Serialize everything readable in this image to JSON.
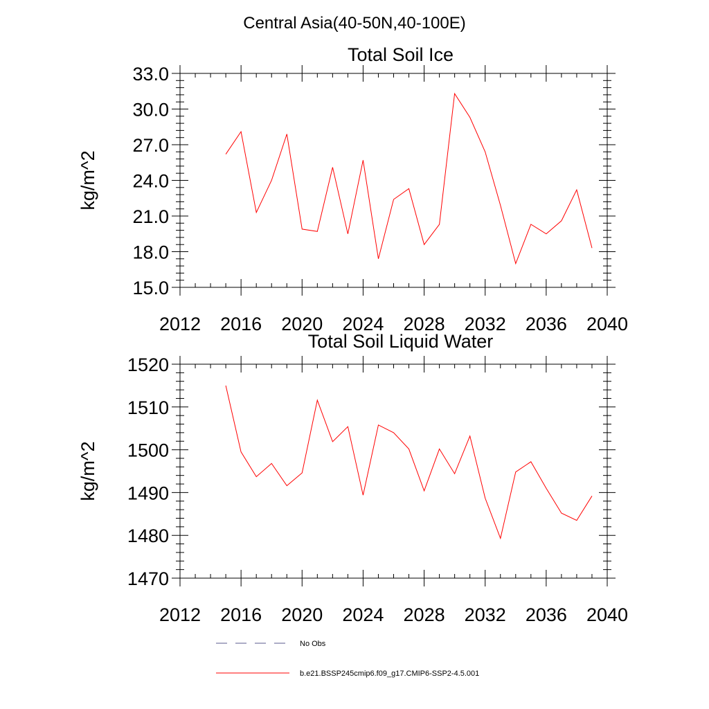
{
  "figure": {
    "suptitle": "Central Asia(40-50N,40-100E)"
  },
  "chart_data": [
    {
      "type": "line",
      "title": "Total Soil Ice",
      "xlabel": "",
      "ylabel": "kg/m^2",
      "xlim": [
        2012,
        2040
      ],
      "ylim": [
        15.0,
        33.0
      ],
      "x_ticks": [
        2012,
        2016,
        2020,
        2024,
        2028,
        2032,
        2036,
        2040
      ],
      "y_ticks": [
        15.0,
        18.0,
        21.0,
        24.0,
        27.0,
        30.0,
        33.0
      ],
      "y_tick_labels": [
        "15.0",
        "18.0",
        "21.0",
        "24.0",
        "27.0",
        "30.0",
        "33.0"
      ],
      "grid": false,
      "series": [
        {
          "name": "b.e21.BSSP245cmip6.f09_g17.CMIP6-SSP2-4.5.001",
          "color": "#ff0000",
          "x": [
            2015,
            2016,
            2017,
            2018,
            2019,
            2020,
            2021,
            2022,
            2023,
            2024,
            2025,
            2026,
            2027,
            2028,
            2029,
            2030,
            2031,
            2032,
            2033,
            2034,
            2035,
            2036,
            2037,
            2038,
            2039
          ],
          "values": [
            26.2,
            28.1,
            21.3,
            24.0,
            27.9,
            19.9,
            19.7,
            25.1,
            19.5,
            25.7,
            17.4,
            22.4,
            23.3,
            18.6,
            20.3,
            31.3,
            29.3,
            26.4,
            21.9,
            17.0,
            20.3,
            19.5,
            20.6,
            23.2,
            18.3
          ]
        }
      ]
    },
    {
      "type": "line",
      "title": "Total Soil Liquid Water",
      "xlabel": "",
      "ylabel": "kg/m^2",
      "xlim": [
        2012,
        2040
      ],
      "ylim": [
        1470,
        1520
      ],
      "x_ticks": [
        2012,
        2016,
        2020,
        2024,
        2028,
        2032,
        2036,
        2040
      ],
      "y_ticks": [
        1470,
        1480,
        1490,
        1500,
        1510,
        1520
      ],
      "y_tick_labels": [
        "1470",
        "1480",
        "1490",
        "1500",
        "1510",
        "1520"
      ],
      "grid": false,
      "series": [
        {
          "name": "b.e21.BSSP245cmip6.f09_g17.CMIP6-SSP2-4.5.001",
          "color": "#ff0000",
          "x": [
            2015,
            2016,
            2017,
            2018,
            2019,
            2020,
            2021,
            2022,
            2023,
            2024,
            2025,
            2026,
            2027,
            2028,
            2029,
            2030,
            2031,
            2032,
            2033,
            2034,
            2035,
            2036,
            2037,
            2038,
            2039
          ],
          "values": [
            1515.0,
            1499.5,
            1493.7,
            1496.8,
            1491.6,
            1494.6,
            1511.6,
            1501.9,
            1505.4,
            1489.4,
            1505.8,
            1504.0,
            1500.2,
            1490.4,
            1500.2,
            1494.4,
            1503.2,
            1488.7,
            1479.3,
            1494.8,
            1497.2,
            1491.0,
            1485.2,
            1483.5,
            1489.2
          ]
        }
      ]
    }
  ],
  "legend": {
    "placement": "bottom",
    "entries": [
      {
        "label": "No Obs",
        "color": "#5a5a8c",
        "style": "dashed"
      },
      {
        "label": "b.e21.BSSP245cmip6.f09_g17.CMIP6-SSP2-4.5.001",
        "color": "#ff0000",
        "style": "solid"
      }
    ]
  }
}
